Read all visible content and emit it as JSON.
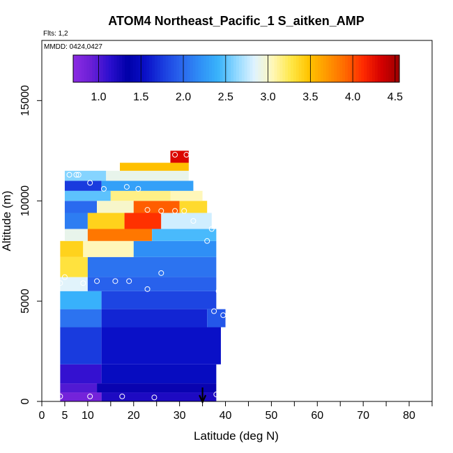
{
  "title": "ATOM4 Northeast_Pacific_1 S_aitken_AMP",
  "flights_label": "Flts: 1,2",
  "dates_label": "MMDD: 0424,0427",
  "chart_data": {
    "type": "heatmap",
    "title": "ATOM4 Northeast_Pacific_1 S_aitken_AMP",
    "xlabel": "Latitude (deg N)",
    "ylabel": "Altitude (m)",
    "xlim": [
      0,
      85
    ],
    "ylim": [
      0,
      18000
    ],
    "x_ticks": [
      0,
      5,
      10,
      20,
      30,
      40,
      50,
      60,
      70,
      80
    ],
    "x_minor_ticks": [
      15,
      25,
      35,
      45,
      55,
      65,
      75,
      85
    ],
    "y_ticks": [
      0,
      5000,
      10000,
      15000
    ],
    "colorbar": {
      "range": [
        0.7,
        4.55
      ],
      "ticks": [
        1.0,
        1.5,
        2.0,
        2.5,
        3.0,
        3.5,
        4.0,
        4.5
      ],
      "colors": [
        "#8b2be2",
        "#6a1fd6",
        "#2c0fcf",
        "#0000a8",
        "#0a10c8",
        "#1b3fe0",
        "#2a67ee",
        "#2f8ff6",
        "#39b3fb",
        "#8fd8ff",
        "#dff3ff",
        "#fff7b8",
        "#ffe84a",
        "#ffc400",
        "#ff9800",
        "#ff6a00",
        "#ff2a00",
        "#d40000",
        "#9c0000"
      ]
    },
    "cells": [
      {
        "lat": [
          4,
          13
        ],
        "alt": [
          0,
          450
        ],
        "value": 0.85
      },
      {
        "lat": [
          13,
          38
        ],
        "alt": [
          0,
          450
        ],
        "value": 1.2
      },
      {
        "lat": [
          4,
          12
        ],
        "alt": [
          450,
          900
        ],
        "value": 1.0
      },
      {
        "lat": [
          12,
          38
        ],
        "alt": [
          450,
          900
        ],
        "value": 1.3
      },
      {
        "lat": [
          4,
          13
        ],
        "alt": [
          900,
          1850
        ],
        "value": 1.1
      },
      {
        "lat": [
          13,
          38
        ],
        "alt": [
          900,
          1850
        ],
        "value": 1.5
      },
      {
        "lat": [
          4,
          13
        ],
        "alt": [
          1850,
          3700
        ],
        "value": 1.75
      },
      {
        "lat": [
          13,
          39
        ],
        "alt": [
          1850,
          3700
        ],
        "value": 1.55
      },
      {
        "lat": [
          4,
          13
        ],
        "alt": [
          3700,
          4600
        ],
        "value": 2.05
      },
      {
        "lat": [
          13,
          36
        ],
        "alt": [
          3700,
          4600
        ],
        "value": 1.65
      },
      {
        "lat": [
          36,
          40
        ],
        "alt": [
          3700,
          4600
        ],
        "value": 1.9
      },
      {
        "lat": [
          4,
          13
        ],
        "alt": [
          4600,
          5500
        ],
        "value": 2.4
      },
      {
        "lat": [
          13,
          38
        ],
        "alt": [
          4600,
          5500
        ],
        "value": 1.8
      },
      {
        "lat": [
          4,
          10
        ],
        "alt": [
          5500,
          6200
        ],
        "value": 2.85
      },
      {
        "lat": [
          10,
          38
        ],
        "alt": [
          5500,
          6200
        ],
        "value": 1.95
      },
      {
        "lat": [
          4,
          10
        ],
        "alt": [
          6200,
          7200
        ],
        "value": 3.3
      },
      {
        "lat": [
          10,
          38
        ],
        "alt": [
          6200,
          7200
        ],
        "value": 2.05
      },
      {
        "lat": [
          4,
          9
        ],
        "alt": [
          7200,
          8000
        ],
        "value": 3.4
      },
      {
        "lat": [
          9,
          20
        ],
        "alt": [
          7200,
          8000
        ],
        "value": 3.05
      },
      {
        "lat": [
          20,
          38
        ],
        "alt": [
          7200,
          8000
        ],
        "value": 2.2
      },
      {
        "lat": [
          5,
          10
        ],
        "alt": [
          8000,
          8600
        ],
        "value": 2.9
      },
      {
        "lat": [
          10,
          24
        ],
        "alt": [
          8000,
          8600
        ],
        "value": 3.85
      },
      {
        "lat": [
          24,
          38
        ],
        "alt": [
          8000,
          8600
        ],
        "value": 2.45
      },
      {
        "lat": [
          5,
          10
        ],
        "alt": [
          8600,
          9400
        ],
        "value": 2.1
      },
      {
        "lat": [
          10,
          18
        ],
        "alt": [
          8600,
          9400
        ],
        "value": 3.4
      },
      {
        "lat": [
          18,
          26
        ],
        "alt": [
          8600,
          9400
        ],
        "value": 4.1
      },
      {
        "lat": [
          26,
          37
        ],
        "alt": [
          8600,
          9400
        ],
        "value": 2.8
      },
      {
        "lat": [
          5,
          12
        ],
        "alt": [
          9400,
          10000
        ],
        "value": 2.0
      },
      {
        "lat": [
          12,
          20
        ],
        "alt": [
          9400,
          10000
        ],
        "value": 3.0
      },
      {
        "lat": [
          20,
          30
        ],
        "alt": [
          9400,
          10000
        ],
        "value": 3.95
      },
      {
        "lat": [
          30,
          36
        ],
        "alt": [
          9400,
          10000
        ],
        "value": 3.35
      },
      {
        "lat": [
          5,
          15
        ],
        "alt": [
          10000,
          10500
        ],
        "value": 2.5
      },
      {
        "lat": [
          15,
          28
        ],
        "alt": [
          10000,
          10500
        ],
        "value": 3.15
      },
      {
        "lat": [
          28,
          35
        ],
        "alt": [
          10000,
          10500
        ],
        "value": 3.05
      },
      {
        "lat": [
          5,
          13
        ],
        "alt": [
          10500,
          11000
        ],
        "value": 1.75
      },
      {
        "lat": [
          13,
          33
        ],
        "alt": [
          10500,
          11000
        ],
        "value": 2.3
      },
      {
        "lat": [
          5,
          14
        ],
        "alt": [
          11000,
          11500
        ],
        "value": 2.6
      },
      {
        "lat": [
          14,
          32
        ],
        "alt": [
          11000,
          11500
        ],
        "value": 2.9
      },
      {
        "lat": [
          17,
          32
        ],
        "alt": [
          11500,
          11900
        ],
        "value": 3.5
      },
      {
        "lat": [
          28,
          32
        ],
        "alt": [
          11900,
          12500
        ],
        "value": 4.3
      }
    ],
    "sample_points": [
      {
        "lat": 4,
        "alt": 250
      },
      {
        "lat": 10.5,
        "alt": 250
      },
      {
        "lat": 17.5,
        "alt": 250
      },
      {
        "lat": 24.5,
        "alt": 200
      },
      {
        "lat": 38,
        "alt": 350
      },
      {
        "lat": 39.5,
        "alt": 4300
      },
      {
        "lat": 37.5,
        "alt": 4500
      },
      {
        "lat": 38.5,
        "alt": 5500
      },
      {
        "lat": 4,
        "alt": 5900
      },
      {
        "lat": 5,
        "alt": 6200
      },
      {
        "lat": 9,
        "alt": 5900
      },
      {
        "lat": 12,
        "alt": 6000
      },
      {
        "lat": 16,
        "alt": 6000
      },
      {
        "lat": 19,
        "alt": 6000
      },
      {
        "lat": 23,
        "alt": 5600
      },
      {
        "lat": 26,
        "alt": 6400
      },
      {
        "lat": 36,
        "alt": 8000
      },
      {
        "lat": 37,
        "alt": 8600
      },
      {
        "lat": 33,
        "alt": 9000
      },
      {
        "lat": 23,
        "alt": 9550
      },
      {
        "lat": 26,
        "alt": 9500
      },
      {
        "lat": 29,
        "alt": 9500
      },
      {
        "lat": 31,
        "alt": 9500
      },
      {
        "lat": 13.5,
        "alt": 10600
      },
      {
        "lat": 18.5,
        "alt": 10700
      },
      {
        "lat": 21,
        "alt": 10600
      },
      {
        "lat": 10.5,
        "alt": 10900
      },
      {
        "lat": 6,
        "alt": 11300
      },
      {
        "lat": 7.5,
        "alt": 11300
      },
      {
        "lat": 8,
        "alt": 11300
      },
      {
        "lat": 29,
        "alt": 12300
      },
      {
        "lat": 31.5,
        "alt": 12300
      }
    ],
    "arrow_latitude": 35
  }
}
